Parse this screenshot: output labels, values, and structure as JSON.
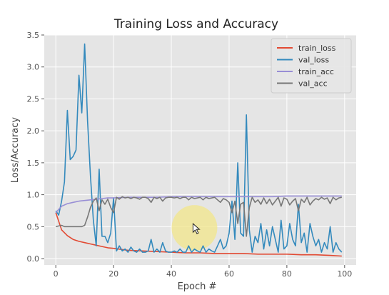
{
  "chart_data": {
    "type": "line",
    "title": "Training Loss and Accuracy",
    "xlabel": "Epoch #",
    "ylabel": "Loss/Accuracy",
    "xlim": [
      -4,
      104
    ],
    "ylim": [
      -0.1,
      3.5
    ],
    "xticks": [
      0,
      20,
      40,
      60,
      80,
      100
    ],
    "yticks": [
      0.0,
      0.5,
      1.0,
      1.5,
      2.0,
      2.5,
      3.0,
      3.5
    ],
    "grid": true,
    "legend_position": "top-right",
    "colors": {
      "background": "#e5e5e5",
      "grid": "#ffffff",
      "cursor_highlight": "#f2e58a"
    },
    "cursor": {
      "x": 48,
      "y": 0.48,
      "icon": "mouse-pointer-icon"
    },
    "series": [
      {
        "name": "train_loss",
        "color": "#e24a33",
        "x": [
          0,
          2,
          4,
          6,
          8,
          10,
          12,
          14,
          16,
          18,
          20,
          25,
          30,
          35,
          40,
          45,
          50,
          55,
          60,
          65,
          70,
          75,
          80,
          85,
          90,
          95,
          99
        ],
        "y": [
          0.72,
          0.45,
          0.36,
          0.3,
          0.27,
          0.25,
          0.23,
          0.21,
          0.19,
          0.17,
          0.16,
          0.13,
          0.12,
          0.11,
          0.1,
          0.09,
          0.09,
          0.08,
          0.08,
          0.08,
          0.07,
          0.07,
          0.07,
          0.06,
          0.06,
          0.05,
          0.04
        ]
      },
      {
        "name": "val_loss",
        "color": "#348abd",
        "x": [
          0,
          1,
          2,
          3,
          4,
          5,
          6,
          7,
          8,
          9,
          10,
          11,
          12,
          13,
          14,
          15,
          16,
          17,
          18,
          19,
          20,
          21,
          22,
          23,
          24,
          25,
          26,
          27,
          28,
          29,
          30,
          31,
          32,
          33,
          34,
          35,
          36,
          37,
          38,
          39,
          40,
          41,
          42,
          43,
          44,
          45,
          46,
          47,
          48,
          49,
          50,
          51,
          52,
          53,
          54,
          55,
          56,
          57,
          58,
          59,
          60,
          61,
          62,
          63,
          64,
          65,
          66,
          67,
          68,
          69,
          70,
          71,
          72,
          73,
          74,
          75,
          76,
          77,
          78,
          79,
          80,
          81,
          82,
          83,
          84,
          85,
          86,
          87,
          88,
          89,
          90,
          91,
          92,
          93,
          94,
          95,
          96,
          97,
          98,
          99
        ],
        "y": [
          0.75,
          0.68,
          0.9,
          1.2,
          2.32,
          1.55,
          1.6,
          1.7,
          2.87,
          2.28,
          3.36,
          2.15,
          1.3,
          0.6,
          0.2,
          1.4,
          0.35,
          0.35,
          0.25,
          0.4,
          0.95,
          0.12,
          0.2,
          0.12,
          0.15,
          0.1,
          0.18,
          0.12,
          0.1,
          0.15,
          0.1,
          0.1,
          0.12,
          0.3,
          0.1,
          0.15,
          0.1,
          0.25,
          0.12,
          0.1,
          0.1,
          0.12,
          0.1,
          0.15,
          0.1,
          0.1,
          0.2,
          0.1,
          0.15,
          0.12,
          0.1,
          0.2,
          0.1,
          0.15,
          0.12,
          0.1,
          0.2,
          0.3,
          0.15,
          0.2,
          0.4,
          0.9,
          0.3,
          1.5,
          0.4,
          0.35,
          2.25,
          0.45,
          0.1,
          0.35,
          0.25,
          0.55,
          0.15,
          0.45,
          0.2,
          0.5,
          0.3,
          0.1,
          0.6,
          0.15,
          0.2,
          0.55,
          0.3,
          0.2,
          0.85,
          0.25,
          0.4,
          0.1,
          0.55,
          0.35,
          0.2,
          0.3,
          0.1,
          0.25,
          0.15,
          0.5,
          0.1,
          0.25,
          0.15,
          0.1
        ]
      },
      {
        "name": "train_acc",
        "color": "#988ed5",
        "x": [
          0,
          2,
          4,
          6,
          8,
          10,
          12,
          14,
          16,
          18,
          20,
          25,
          30,
          35,
          40,
          45,
          50,
          55,
          60,
          65,
          70,
          75,
          80,
          85,
          90,
          95,
          99
        ],
        "y": [
          0.72,
          0.82,
          0.86,
          0.88,
          0.9,
          0.91,
          0.92,
          0.93,
          0.94,
          0.95,
          0.95,
          0.96,
          0.96,
          0.96,
          0.97,
          0.97,
          0.97,
          0.97,
          0.97,
          0.97,
          0.97,
          0.97,
          0.98,
          0.98,
          0.98,
          0.98,
          0.98
        ]
      },
      {
        "name": "val_acc",
        "color": "#777777",
        "x": [
          0,
          1,
          2,
          3,
          4,
          5,
          6,
          7,
          8,
          9,
          10,
          11,
          12,
          13,
          14,
          15,
          16,
          17,
          18,
          19,
          20,
          21,
          22,
          23,
          24,
          25,
          26,
          27,
          28,
          29,
          30,
          31,
          32,
          33,
          34,
          35,
          36,
          37,
          38,
          39,
          40,
          41,
          42,
          43,
          44,
          45,
          46,
          47,
          48,
          49,
          50,
          51,
          52,
          53,
          54,
          55,
          56,
          57,
          58,
          59,
          60,
          61,
          62,
          63,
          64,
          65,
          66,
          67,
          68,
          69,
          70,
          71,
          72,
          73,
          74,
          75,
          76,
          77,
          78,
          79,
          80,
          81,
          82,
          83,
          84,
          85,
          86,
          87,
          88,
          89,
          90,
          91,
          92,
          93,
          94,
          95,
          96,
          97,
          98,
          99
        ],
        "y": [
          0.5,
          0.51,
          0.52,
          0.5,
          0.5,
          0.5,
          0.5,
          0.5,
          0.5,
          0.5,
          0.52,
          0.65,
          0.8,
          0.9,
          0.95,
          0.75,
          0.92,
          0.85,
          0.93,
          0.8,
          0.72,
          0.96,
          0.93,
          0.97,
          0.95,
          0.96,
          0.94,
          0.96,
          0.95,
          0.93,
          0.96,
          0.96,
          0.94,
          0.88,
          0.96,
          0.94,
          0.96,
          0.9,
          0.95,
          0.96,
          0.96,
          0.95,
          0.96,
          0.94,
          0.96,
          0.96,
          0.92,
          0.96,
          0.94,
          0.95,
          0.96,
          0.92,
          0.96,
          0.94,
          0.95,
          0.96,
          0.92,
          0.88,
          0.94,
          0.92,
          0.88,
          0.72,
          0.9,
          0.55,
          0.85,
          0.88,
          0.35,
          0.8,
          0.96,
          0.88,
          0.92,
          0.85,
          0.95,
          0.86,
          0.93,
          0.84,
          0.9,
          0.96,
          0.82,
          0.95,
          0.93,
          0.84,
          0.9,
          0.94,
          0.75,
          0.93,
          0.88,
          0.96,
          0.84,
          0.9,
          0.94,
          0.92,
          0.96,
          0.93,
          0.95,
          0.86,
          0.96,
          0.92,
          0.95,
          0.96
        ]
      }
    ]
  }
}
